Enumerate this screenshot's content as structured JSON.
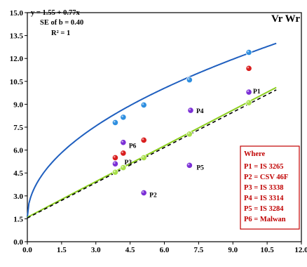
{
  "chart_data": {
    "type": "scatter",
    "title": "Vr Wr",
    "xlabel": "",
    "ylabel": "",
    "xlim": [
      0,
      12
    ],
    "ylim": [
      0,
      15
    ],
    "x_ticks": [
      "0.0",
      "1.5",
      "3.0",
      "4.5",
      "6.0",
      "7.5",
      "9.0",
      "10.5",
      "12.0"
    ],
    "y_ticks": [
      "0.0",
      "1.5",
      "3.0",
      "4.5",
      "6.0",
      "7.5",
      "9.0",
      "10.5",
      "12.0",
      "13.5",
      "15.0"
    ],
    "regression": {
      "equation": "y = 1.55 + 0.77x",
      "se_b": "SE of b = 0.40",
      "r2": "R² = 1",
      "intercept": 1.55,
      "slope": 0.77
    },
    "parents": [
      {
        "label": "P1",
        "x": 9.7,
        "y": 9.8
      },
      {
        "label": "P2",
        "x": 5.1,
        "y": 3.2
      },
      {
        "label": "P3",
        "x": 3.85,
        "y": 5.1
      },
      {
        "label": "P4",
        "x": 7.15,
        "y": 8.6
      },
      {
        "label": "P5",
        "x": 7.1,
        "y": 5.0
      },
      {
        "label": "P6",
        "x": 4.2,
        "y": 6.5
      }
    ],
    "parabola_points": [
      {
        "x": 3.85,
        "y": 7.8
      },
      {
        "x": 4.2,
        "y": 8.15
      },
      {
        "x": 5.1,
        "y": 8.95
      },
      {
        "x": 7.1,
        "y": 10.6
      },
      {
        "x": 9.7,
        "y": 12.4
      }
    ],
    "lower_line_points": [
      {
        "x": 3.85,
        "y": 4.55
      },
      {
        "x": 4.2,
        "y": 4.85
      },
      {
        "x": 5.1,
        "y": 5.5
      },
      {
        "x": 7.1,
        "y": 7.05
      },
      {
        "x": 9.7,
        "y": 9.1
      }
    ],
    "regression_points": [
      {
        "x": 3.85,
        "y": 5.5
      },
      {
        "x": 4.2,
        "y": 5.8
      },
      {
        "x": 5.1,
        "y": 6.65
      },
      {
        "x": 9.7,
        "y": 11.35
      }
    ],
    "curves": {
      "parabola": {
        "color": "#1f5fbf",
        "a": 1.6,
        "b": 3.45,
        "x_end": 10.9
      },
      "lower_line": {
        "color": "#8ccf1f",
        "intercept": 1.6,
        "slope": 0.78,
        "x_end": 10.9
      },
      "regression_line": {
        "color": "#000000",
        "dashed": true,
        "x_end": 10.9
      }
    },
    "legend": {
      "title": "Where",
      "entries": [
        "P1 = IS 3265",
        "P2 = CSV 46F",
        "P3 = IS 3338",
        "P4 = IS 3314",
        "P5 = IS 3284",
        "P6 = Malwan"
      ],
      "placement": "bottom-right"
    },
    "colors": {
      "parent": "#7b2fd6",
      "parabola_point": "#2f8fe0",
      "lower_point": "#a8e04a",
      "regression_point": "#d91e1e",
      "legend_text": "#c00000",
      "legend_border": "#c00000"
    }
  }
}
